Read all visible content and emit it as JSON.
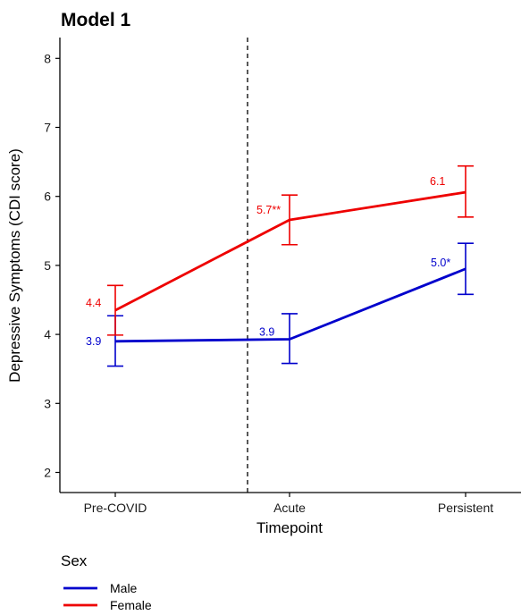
{
  "chart_data": {
    "type": "line",
    "title": "Model 1",
    "xlabel": "Timepoint",
    "ylabel": "Depressive Symptoms (CDI score)",
    "categories": [
      "Pre-COVID",
      "Acute",
      "Persistent"
    ],
    "ylim": [
      1.7,
      8.3
    ],
    "yticks": [
      2,
      3,
      4,
      5,
      6,
      7,
      8
    ],
    "grid": false,
    "vline": {
      "between": [
        "Pre-COVID",
        "Acute"
      ],
      "style": "dashed"
    },
    "legend": {
      "title": "Sex",
      "placement": "bottom-left"
    },
    "series": [
      {
        "name": "Male",
        "color": "#0000cc",
        "values": [
          3.9,
          3.93,
          4.95
        ],
        "ci_low": [
          3.54,
          3.58,
          4.58
        ],
        "ci_high": [
          4.27,
          4.3,
          5.32
        ],
        "labels": [
          "3.9",
          "3.9",
          "5.0*"
        ]
      },
      {
        "name": "Female",
        "color": "#ee0000",
        "values": [
          4.35,
          5.66,
          6.06
        ],
        "ci_low": [
          3.99,
          5.3,
          5.7
        ],
        "ci_high": [
          4.71,
          6.02,
          6.44
        ],
        "labels": [
          "4.4",
          "5.7**",
          "6.1"
        ]
      }
    ]
  }
}
